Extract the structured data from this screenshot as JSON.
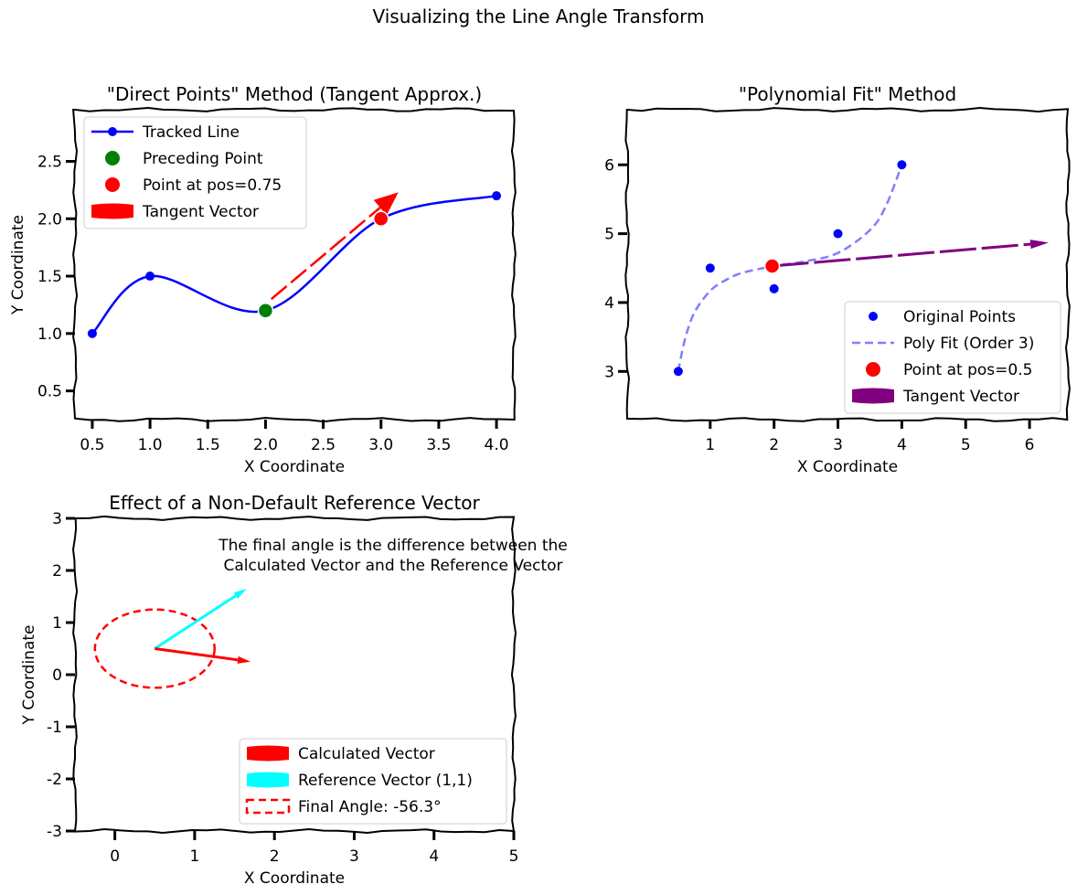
{
  "figure": {
    "title": "Visualizing the Line Angle Transform"
  },
  "chart_data": [
    {
      "type": "line",
      "title": "\"Direct Points\" Method (Tangent Approx.)",
      "xlabel": "X Coordinate",
      "ylabel": "Y Coordinate",
      "xlim": [
        0.35,
        4.15
      ],
      "ylim": [
        0.25,
        2.95
      ],
      "xticks": [
        0.5,
        1.0,
        1.5,
        2.0,
        2.5,
        3.0,
        3.5,
        4.0
      ],
      "xtick_labels": [
        "0.5",
        "1.0",
        "1.5",
        "2.0",
        "2.5",
        "3.0",
        "3.5",
        "4.0"
      ],
      "yticks": [
        0.5,
        1.0,
        1.5,
        2.0,
        2.5
      ],
      "ytick_labels": [
        "0.5",
        "1.0",
        "1.5",
        "2.0",
        "2.5"
      ],
      "series": [
        {
          "name": "Tracked Line",
          "color": "#0000ff",
          "x": [
            0.5,
            1.0,
            2.0,
            3.0,
            4.0
          ],
          "y": [
            1.0,
            1.5,
            1.2,
            2.0,
            2.2
          ]
        },
        {
          "name": "Preceding Point",
          "color": "#008000",
          "x": [
            2.0
          ],
          "y": [
            1.2
          ]
        },
        {
          "name": "Point at pos=0.75",
          "color": "#ff0000",
          "x": [
            3.0
          ],
          "y": [
            2.0
          ]
        },
        {
          "name": "Tangent Vector",
          "color": "#ff0000",
          "from": [
            2.05,
            1.3
          ],
          "to": [
            3.15,
            2.23
          ]
        }
      ],
      "legend": [
        "Tracked Line",
        "Preceding Point",
        "Point at pos=0.75",
        "Tangent Vector"
      ],
      "legend_position": "upper-left"
    },
    {
      "type": "line",
      "title": "\"Polynomial Fit\" Method",
      "xlabel": "X Coordinate",
      "ylabel": "",
      "xlim": [
        -0.3,
        6.6
      ],
      "ylim": [
        2.3,
        6.8
      ],
      "xticks": [
        1,
        2,
        3,
        4,
        5,
        6
      ],
      "xtick_labels": [
        "1",
        "2",
        "3",
        "4",
        "5",
        "6"
      ],
      "yticks": [
        3,
        4,
        5,
        6
      ],
      "ytick_labels": [
        "3",
        "4",
        "5",
        "6"
      ],
      "series": [
        {
          "name": "Original Points",
          "color": "#0000ff",
          "x": [
            0.5,
            1.0,
            2.0,
            3.0,
            4.0
          ],
          "y": [
            3.0,
            4.5,
            4.2,
            5.0,
            6.0
          ]
        },
        {
          "name": "Poly Fit (Order 3)",
          "color": "#7f7fff",
          "x": [
            0.5,
            0.6,
            0.75,
            1.0,
            1.25,
            1.5,
            2.0,
            2.5,
            3.0,
            3.5,
            3.75,
            4.0
          ],
          "y": [
            3.0,
            3.45,
            3.85,
            4.17,
            4.33,
            4.43,
            4.53,
            4.6,
            4.72,
            5.05,
            5.4,
            6.0
          ]
        },
        {
          "name": "Point at pos=0.5",
          "color": "#ff0000",
          "x": [
            1.97
          ],
          "y": [
            4.53
          ]
        },
        {
          "name": "Tangent Vector",
          "color": "#800080",
          "from": [
            1.97,
            4.53
          ],
          "to": [
            6.3,
            4.87
          ]
        }
      ],
      "legend": [
        "Original Points",
        "Poly Fit (Order 3)",
        "Point at pos=0.5",
        "Tangent Vector"
      ],
      "legend_position": "lower-right"
    },
    {
      "type": "line",
      "title": "Effect of a Non-Default Reference Vector",
      "xlabel": "X Coordinate",
      "ylabel": "Y Coordinate",
      "xlim": [
        -0.5,
        5.0
      ],
      "ylim": [
        -3.0,
        3.0
      ],
      "xticks": [
        0,
        1,
        2,
        3,
        4,
        5
      ],
      "xtick_labels": [
        "0",
        "1",
        "2",
        "3",
        "4",
        "5"
      ],
      "yticks": [
        -3,
        -2,
        -1,
        0,
        1,
        2,
        3
      ],
      "ytick_labels": [
        "-3",
        "-2",
        "-1",
        "0",
        "1",
        "2",
        "3"
      ],
      "series": [
        {
          "name": "Calculated Vector",
          "color": "#ff0000",
          "from": [
            0.5,
            0.5
          ],
          "to": [
            1.7,
            0.25
          ]
        },
        {
          "name": "Reference Vector (1,1)",
          "color": "#00ffff",
          "from": [
            0.5,
            0.5
          ],
          "to": [
            1.65,
            1.65
          ]
        },
        {
          "name": "Final Angle: -56.3°",
          "color": "#ff0000",
          "center": [
            0.5,
            0.5
          ],
          "width": 1.5,
          "height": 1.5
        }
      ],
      "legend": [
        "Calculated Vector",
        "Reference Vector (1,1)",
        "Final Angle: -56.3°"
      ],
      "legend_position": "lower-right",
      "annotation": [
        "The final angle is the difference between the",
        "Calculated Vector and the Reference Vector"
      ]
    }
  ]
}
